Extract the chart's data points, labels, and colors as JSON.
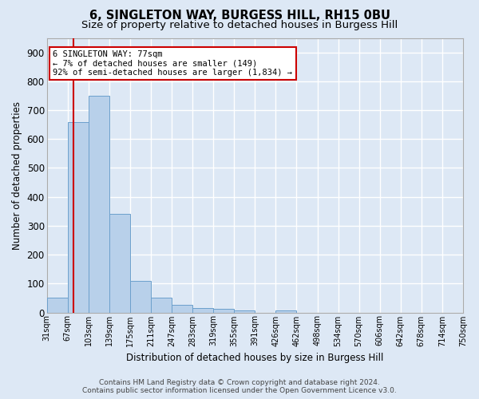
{
  "title": "6, SINGLETON WAY, BURGESS HILL, RH15 0BU",
  "subtitle": "Size of property relative to detached houses in Burgess Hill",
  "xlabel": "Distribution of detached houses by size in Burgess Hill",
  "ylabel": "Number of detached properties",
  "bar_values": [
    50,
    660,
    750,
    340,
    108,
    50,
    25,
    15,
    12,
    8,
    0,
    8,
    0,
    0,
    0,
    0,
    0,
    0,
    0,
    0
  ],
  "bar_labels": [
    "31sqm",
    "67sqm",
    "103sqm",
    "139sqm",
    "175sqm",
    "211sqm",
    "247sqm",
    "283sqm",
    "319sqm",
    "355sqm",
    "391sqm",
    "426sqm",
    "462sqm",
    "498sqm",
    "534sqm",
    "570sqm",
    "606sqm",
    "642sqm",
    "678sqm",
    "714sqm",
    "750sqm"
  ],
  "bar_color": "#b8d0ea",
  "bar_edge_color": "#6ca0cc",
  "vline_color": "#cc0000",
  "annotation_box_text": "6 SINGLETON WAY: 77sqm\n← 7% of detached houses are smaller (149)\n92% of semi-detached houses are larger (1,834) →",
  "ylim": [
    0,
    950
  ],
  "yticks": [
    0,
    100,
    200,
    300,
    400,
    500,
    600,
    700,
    800,
    900
  ],
  "footer_line1": "Contains HM Land Registry data © Crown copyright and database right 2024.",
  "footer_line2": "Contains public sector information licensed under the Open Government Licence v3.0.",
  "bg_color": "#dde8f5",
  "plot_bg_color": "#dde8f5",
  "grid_color": "#ffffff",
  "title_fontsize": 10.5,
  "subtitle_fontsize": 9.5,
  "tick_label_fontsize": 7,
  "ylabel_fontsize": 8.5,
  "xlabel_fontsize": 8.5,
  "footer_fontsize": 6.5,
  "annot_fontsize": 7.5
}
